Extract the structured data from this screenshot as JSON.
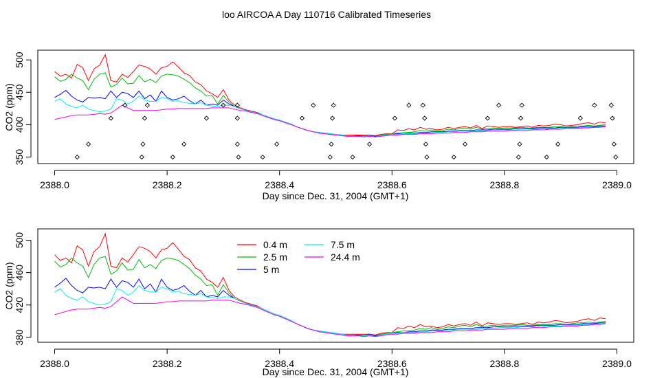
{
  "title": "loo AIRCOA A  Day 110716  Calibrated Timeseries",
  "colors": {
    "0.4 m": "#ff0000",
    "2.5 m": "#00bb00",
    "5 m": "#0000ff",
    "7.5 m": "#00eeee",
    "24.4 m": "#ee00ee",
    "flags": "#000000"
  },
  "chart_data": [
    {
      "type": "line",
      "title": "",
      "xlabel": "Day since Dec. 31, 2004 (GMT+1)",
      "ylabel": "CO2 (ppm)",
      "xlim": [
        2387.97,
        2389.03
      ],
      "ylim": [
        340,
        515
      ],
      "xticks": [
        2388.0,
        2388.2,
        2388.4,
        2388.6,
        2388.8,
        2389.0
      ],
      "xtick_labels": [
        "2388.0",
        "2388.2",
        "2388.4",
        "2388.6",
        "2388.8",
        "2389.0"
      ],
      "yticks": [
        350,
        400,
        450,
        500
      ],
      "ytick_labels": [
        "350",
        "400",
        "450",
        "500"
      ],
      "grid": false,
      "legend": "none",
      "series": "shared_series",
      "markers": {
        "name": "",
        "points": [
          [
            2388.04,
            350
          ],
          [
            2388.06,
            370
          ],
          [
            2388.1,
            410
          ],
          [
            2388.125,
            430
          ],
          [
            2388.155,
            350
          ],
          [
            2388.157,
            370
          ],
          [
            2388.16,
            410
          ],
          [
            2388.165,
            430
          ],
          [
            2388.21,
            350
          ],
          [
            2388.23,
            370
          ],
          [
            2388.27,
            410
          ],
          [
            2388.3,
            430
          ],
          [
            2388.325,
            430
          ],
          [
            2388.325,
            410
          ],
          [
            2388.325,
            370
          ],
          [
            2388.327,
            350
          ],
          [
            2388.37,
            350
          ],
          [
            2388.395,
            370
          ],
          [
            2388.44,
            410
          ],
          [
            2388.46,
            430
          ],
          [
            2388.49,
            350
          ],
          [
            2388.492,
            370
          ],
          [
            2388.494,
            410
          ],
          [
            2388.496,
            430
          ],
          [
            2388.53,
            350
          ],
          [
            2388.56,
            370
          ],
          [
            2388.605,
            410
          ],
          [
            2388.63,
            430
          ],
          [
            2388.655,
            430
          ],
          [
            2388.658,
            410
          ],
          [
            2388.66,
            370
          ],
          [
            2388.662,
            350
          ],
          [
            2388.71,
            350
          ],
          [
            2388.73,
            370
          ],
          [
            2388.77,
            410
          ],
          [
            2388.79,
            430
          ],
          [
            2388.825,
            350
          ],
          [
            2388.827,
            370
          ],
          [
            2388.829,
            410
          ],
          [
            2388.831,
            430
          ],
          [
            2388.875,
            350
          ],
          [
            2388.895,
            370
          ],
          [
            2388.935,
            410
          ],
          [
            2388.96,
            430
          ],
          [
            2388.99,
            430
          ],
          [
            2388.992,
            410
          ],
          [
            2388.995,
            370
          ],
          [
            2388.998,
            350
          ]
        ]
      }
    },
    {
      "type": "line",
      "title": "",
      "xlabel": "Day since Dec. 31, 2004 (GMT+1)",
      "ylabel": "CO2 (ppm)",
      "xlim": [
        2387.97,
        2389.03
      ],
      "ylim": [
        374,
        514
      ],
      "xticks": [
        2388.0,
        2388.2,
        2388.4,
        2388.6,
        2388.8,
        2389.0
      ],
      "xtick_labels": [
        "2388.0",
        "2388.2",
        "2388.4",
        "2388.6",
        "2388.8",
        "2389.0"
      ],
      "yticks": [
        380,
        420,
        460,
        500
      ],
      "ytick_labels": [
        "380",
        "420",
        "460",
        "500"
      ],
      "grid": false,
      "legend": "upper-left, two columns",
      "series": "shared_series"
    }
  ],
  "shared_series": {
    "x": [
      2388.0,
      2388.01,
      2388.02,
      2388.03,
      2388.04,
      2388.05,
      2388.06,
      2388.07,
      2388.08,
      2388.09,
      2388.1,
      2388.11,
      2388.12,
      2388.13,
      2388.14,
      2388.15,
      2388.16,
      2388.17,
      2388.18,
      2388.19,
      2388.2,
      2388.21,
      2388.22,
      2388.23,
      2388.24,
      2388.25,
      2388.26,
      2388.27,
      2388.28,
      2388.29,
      2388.3,
      2388.31,
      2388.32,
      2388.33,
      2388.34,
      2388.35,
      2388.36,
      2388.37,
      2388.38,
      2388.39,
      2388.4,
      2388.41,
      2388.42,
      2388.43,
      2388.44,
      2388.45,
      2388.46,
      2388.47,
      2388.48,
      2388.49,
      2388.5,
      2388.51,
      2388.52,
      2388.53,
      2388.54,
      2388.55,
      2388.56,
      2388.57,
      2388.58,
      2388.59,
      2388.6,
      2388.61,
      2388.62,
      2388.63,
      2388.64,
      2388.65,
      2388.66,
      2388.67,
      2388.68,
      2388.69,
      2388.7,
      2388.71,
      2388.72,
      2388.73,
      2388.74,
      2388.75,
      2388.76,
      2388.77,
      2388.78,
      2388.79,
      2388.8,
      2388.81,
      2388.82,
      2388.83,
      2388.84,
      2388.85,
      2388.86,
      2388.87,
      2388.88,
      2388.89,
      2388.9,
      2388.91,
      2388.92,
      2388.93,
      2388.94,
      2388.95,
      2388.96,
      2388.97,
      2388.98
    ],
    "series": [
      {
        "name": "0.4 m",
        "values": [
          482,
          475,
          478,
          472,
          493,
          488,
          468,
          486,
          492,
          508,
          468,
          466,
          478,
          473,
          482,
          492,
          490,
          486,
          478,
          488,
          490,
          497,
          489,
          480,
          476,
          466,
          462,
          452,
          448,
          442,
          454,
          438,
          430,
          426,
          423,
          421,
          419,
          415,
          412,
          409,
          407,
          404,
          401,
          397,
          394,
          391,
          389,
          388,
          387,
          386,
          385,
          384,
          384,
          384,
          384,
          384,
          384,
          383,
          385,
          386,
          386,
          392,
          391,
          394,
          392,
          396,
          393,
          394,
          392,
          393,
          396,
          394,
          396,
          397,
          395,
          399,
          394,
          398,
          397,
          396,
          397,
          397,
          396,
          397,
          398,
          396,
          399,
          398,
          399,
          401,
          400,
          398,
          399,
          400,
          402,
          403,
          401,
          404,
          403
        ]
      },
      {
        "name": "2.5 m",
        "values": [
          474,
          467,
          470,
          478,
          472,
          468,
          454,
          470,
          478,
          480,
          458,
          462,
          472,
          463,
          464,
          476,
          466,
          470,
          465,
          475,
          478,
          477,
          475,
          470,
          465,
          457,
          452,
          444,
          445,
          432,
          445,
          435,
          428,
          425,
          422,
          420,
          418,
          415,
          412,
          409,
          407,
          404,
          401,
          397,
          394,
          391,
          389,
          388,
          387,
          386,
          385,
          384,
          383,
          383,
          383,
          383,
          384,
          382,
          384,
          385,
          386,
          387,
          388,
          388,
          389,
          391,
          390,
          392,
          390,
          391,
          393,
          392,
          394,
          395,
          393,
          396,
          393,
          394,
          395,
          394,
          395,
          395,
          395,
          396,
          395,
          395,
          396,
          396,
          396,
          397,
          397,
          396,
          397,
          398,
          398,
          399,
          398,
          399,
          400
        ]
      },
      {
        "name": "5 m",
        "values": [
          442,
          447,
          453,
          444,
          438,
          435,
          442,
          441,
          442,
          440,
          452,
          442,
          450,
          448,
          442,
          452,
          440,
          446,
          436,
          452,
          442,
          438,
          440,
          444,
          437,
          432,
          438,
          430,
          432,
          430,
          438,
          432,
          428,
          425,
          422,
          420,
          418,
          415,
          412,
          409,
          407,
          404,
          401,
          397,
          394,
          391,
          389,
          388,
          387,
          386,
          385,
          384,
          383,
          383,
          383,
          382,
          384,
          382,
          383,
          384,
          385,
          386,
          386,
          387,
          387,
          388,
          388,
          389,
          389,
          389,
          390,
          390,
          391,
          391,
          391,
          392,
          392,
          392,
          393,
          393,
          393,
          393,
          394,
          394,
          394,
          394,
          395,
          395,
          395,
          395,
          396,
          396,
          396,
          396,
          397,
          397,
          397,
          398,
          398
        ]
      },
      {
        "name": "7.5 m",
        "values": [
          436,
          440,
          432,
          428,
          426,
          430,
          424,
          422,
          420,
          421,
          424,
          440,
          438,
          432,
          436,
          444,
          438,
          436,
          436,
          442,
          440,
          436,
          437,
          434,
          433,
          432,
          434,
          430,
          429,
          428,
          430,
          430,
          428,
          425,
          422,
          420,
          418,
          415,
          412,
          409,
          407,
          404,
          401,
          397,
          394,
          391,
          389,
          388,
          387,
          386,
          385,
          384,
          383,
          383,
          382,
          382,
          383,
          381,
          383,
          384,
          385,
          385,
          386,
          386,
          386,
          387,
          387,
          388,
          388,
          388,
          389,
          389,
          390,
          390,
          390,
          390,
          391,
          391,
          391,
          392,
          392,
          392,
          392,
          393,
          393,
          393,
          393,
          394,
          394,
          394,
          394,
          395,
          395,
          395,
          396,
          396,
          396,
          397,
          397
        ]
      },
      {
        "name": "24.4 m",
        "values": [
          408,
          410,
          412,
          414,
          415,
          415,
          415,
          416,
          417,
          416,
          418,
          424,
          430,
          426,
          422,
          422,
          422,
          422,
          422,
          423,
          424,
          424,
          425,
          425,
          425,
          425,
          425,
          425,
          426,
          426,
          426,
          426,
          424,
          422,
          421,
          419,
          417,
          414,
          411,
          408,
          406,
          403,
          400,
          397,
          394,
          391,
          389,
          387,
          386,
          385,
          384,
          383,
          382,
          382,
          382,
          381,
          382,
          381,
          382,
          383,
          384,
          384,
          385,
          385,
          385,
          386,
          386,
          386,
          387,
          387,
          387,
          388,
          388,
          388,
          389,
          389,
          389,
          390,
          390,
          390,
          390,
          391,
          391,
          391,
          391,
          392,
          392,
          392,
          393,
          393,
          393,
          394,
          394,
          394,
          395,
          395,
          396,
          396,
          397
        ]
      }
    ]
  }
}
